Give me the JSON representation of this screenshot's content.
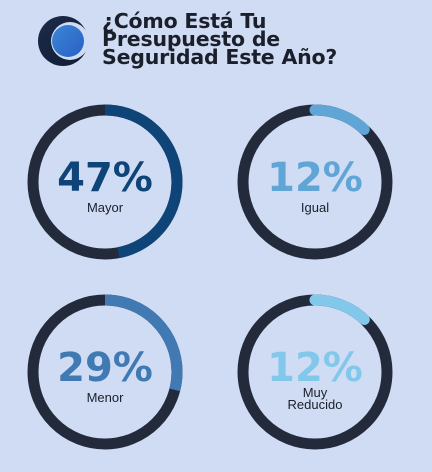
{
  "header": {
    "title_lines": [
      "¿Cómo Está Tu",
      "Presupuesto de",
      "Seguridad Este Año?"
    ],
    "logo_icon": "crescent-logo-icon"
  },
  "colors": {
    "background": "#cfdcf3",
    "track": "#232a3b",
    "mayor": "#0f4479",
    "igual": "#5fa6d6",
    "menor": "#4179b3",
    "muy_reducido": "#82c8ea"
  },
  "chart_data": {
    "type": "donut-gauges",
    "title": "¿Cómo Está Tu Presupuesto de Seguridad Este Año?",
    "gauges": [
      {
        "label": "Mayor",
        "label_lines": [
          "Mayor"
        ],
        "value": 47,
        "display": "47%",
        "color": "#0f4479"
      },
      {
        "label": "Igual",
        "label_lines": [
          "Igual"
        ],
        "value": 12,
        "display": "12%",
        "color": "#5fa6d6"
      },
      {
        "label": "Menor",
        "label_lines": [
          "Menor"
        ],
        "value": 29,
        "display": "29%",
        "color": "#4179b3"
      },
      {
        "label": "Muy Reducido",
        "label_lines": [
          "Muy",
          "Reducido"
        ],
        "value": 12,
        "display": "12%",
        "color": "#82c8ea"
      }
    ]
  }
}
